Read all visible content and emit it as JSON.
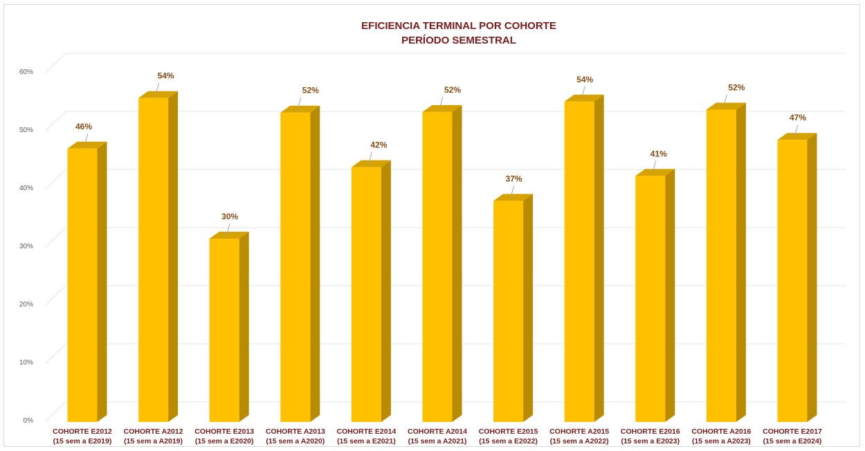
{
  "chart_data": {
    "type": "bar",
    "title": "EFICIENCIA TERMINAL POR COHORTE",
    "subtitle": "PERÍODO SEMESTRAL",
    "xlabel": "",
    "ylabel": "",
    "ylim": [
      0,
      60
    ],
    "yticks": [
      "0%",
      "10%",
      "20%",
      "30%",
      "40%",
      "50%",
      "60%"
    ],
    "grid": true,
    "legend": "none",
    "categories": [
      [
        "COHORTE E2012",
        "(15 sem a E2019)"
      ],
      [
        "COHORTE A2012",
        "(15 sem a A2019)"
      ],
      [
        "COHORTE E2013",
        "(15 sem a E2020)"
      ],
      [
        "COHORTE A2013",
        "(15 sem a A2020)"
      ],
      [
        "COHORTE E2014",
        "(15 sem a E2021)"
      ],
      [
        "COHORTE A2014",
        "(15 sem a A2021)"
      ],
      [
        "COHORTE E2015",
        "(15 sem a E2022)"
      ],
      [
        "COHORTE A2015",
        "(15 sem a A2022)"
      ],
      [
        "COHORTE E2016",
        "(15 sem a E2023)"
      ],
      [
        "COHORTE A2016",
        "(15 sem a A2023)"
      ],
      [
        "COHORTE E2017",
        "(15 sem a E2024)"
      ]
    ],
    "values": [
      45.5,
      54.2,
      30.0,
      51.7,
      42.3,
      51.8,
      36.5,
      53.6,
      40.8,
      52.2,
      47.0
    ],
    "data_labels": [
      "46%",
      "54%",
      "30%",
      "52%",
      "42%",
      "52%",
      "37%",
      "54%",
      "41%",
      "52%",
      "47%"
    ],
    "colors": {
      "bar_front": "#ffc000",
      "bar_side": "#b88b00",
      "bar_top": "#d6a200",
      "title": "#7b1a1a",
      "data_label": "#8a4a12"
    }
  }
}
